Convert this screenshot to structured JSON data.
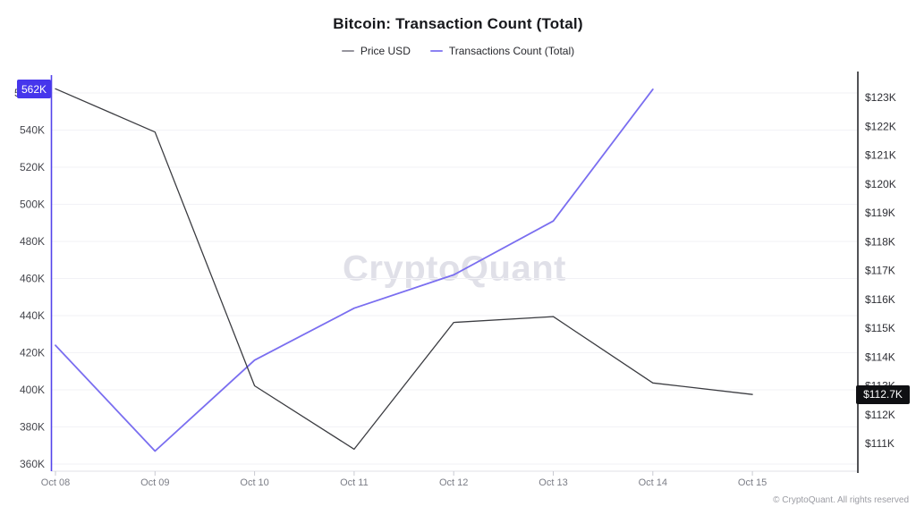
{
  "title": "Bitcoin: Transaction Count (Total)",
  "legend": {
    "items": [
      {
        "label": "Price USD",
        "color": "#96959D"
      },
      {
        "label": "Transactions Count (Total)",
        "color": "#8C82F2"
      }
    ]
  },
  "watermark": "CryptoQuant",
  "footer": "© CryptoQuant. All rights reserved",
  "last_value_badges": {
    "transactions": {
      "label": "562K",
      "bg": "#4636EC",
      "text_color": "#FFFFFF"
    },
    "price": {
      "label": "$112.7K",
      "bg": "#0F1013",
      "text_color": "#FFFFFF"
    }
  },
  "chart_data": {
    "type": "line",
    "title": "Bitcoin: Transaction Count (Total)",
    "x_labels": [
      "Oct 08",
      "Oct 09",
      "Oct 10",
      "Oct 11",
      "Oct 12",
      "Oct 13",
      "Oct 14",
      "Oct 15"
    ],
    "series": [
      {
        "name": "Transactions Count (Total)",
        "axis": "left",
        "color": "#7A6EF0",
        "stroke_width": 1.8,
        "values": [
          424000,
          367000,
          416000,
          444000,
          462000,
          491000,
          562000,
          null
        ]
      },
      {
        "name": "Price USD",
        "axis": "right",
        "color": "#3B3C41",
        "stroke_width": 1.3,
        "values": [
          123300,
          121800,
          113000,
          110800,
          115200,
          115400,
          113100,
          112700
        ]
      }
    ],
    "left_axis": {
      "side": "left",
      "axis_color": "#5243EB",
      "range": [
        355000,
        572000
      ],
      "ticks": [
        {
          "label": "560K",
          "value": 560000
        },
        {
          "label": "540K",
          "value": 540000
        },
        {
          "label": "520K",
          "value": 520000
        },
        {
          "label": "500K",
          "value": 500000
        },
        {
          "label": "480K",
          "value": 480000
        },
        {
          "label": "460K",
          "value": 460000
        },
        {
          "label": "440K",
          "value": 440000
        },
        {
          "label": "420K",
          "value": 420000
        },
        {
          "label": "400K",
          "value": 400000
        },
        {
          "label": "380K",
          "value": 380000
        },
        {
          "label": "360K",
          "value": 360000
        }
      ]
    },
    "right_axis": {
      "side": "right",
      "axis_color": "#191A1E",
      "range": [
        110500,
        123800
      ],
      "ticks": [
        {
          "label": "$123K",
          "value": 123000
        },
        {
          "label": "$122K",
          "value": 122000
        },
        {
          "label": "$121K",
          "value": 121000
        },
        {
          "label": "$120K",
          "value": 120000
        },
        {
          "label": "$119K",
          "value": 119000
        },
        {
          "label": "$118K",
          "value": 118000
        },
        {
          "label": "$117K",
          "value": 117000
        },
        {
          "label": "$116K",
          "value": 116000
        },
        {
          "label": "$115K",
          "value": 115000
        },
        {
          "label": "$114K",
          "value": 114000
        },
        {
          "label": "$113K",
          "value": 113000
        },
        {
          "label": "$112K",
          "value": 112000
        },
        {
          "label": "$111K",
          "value": 111000
        }
      ]
    },
    "grid": "horizontal",
    "legend_position": "top"
  }
}
